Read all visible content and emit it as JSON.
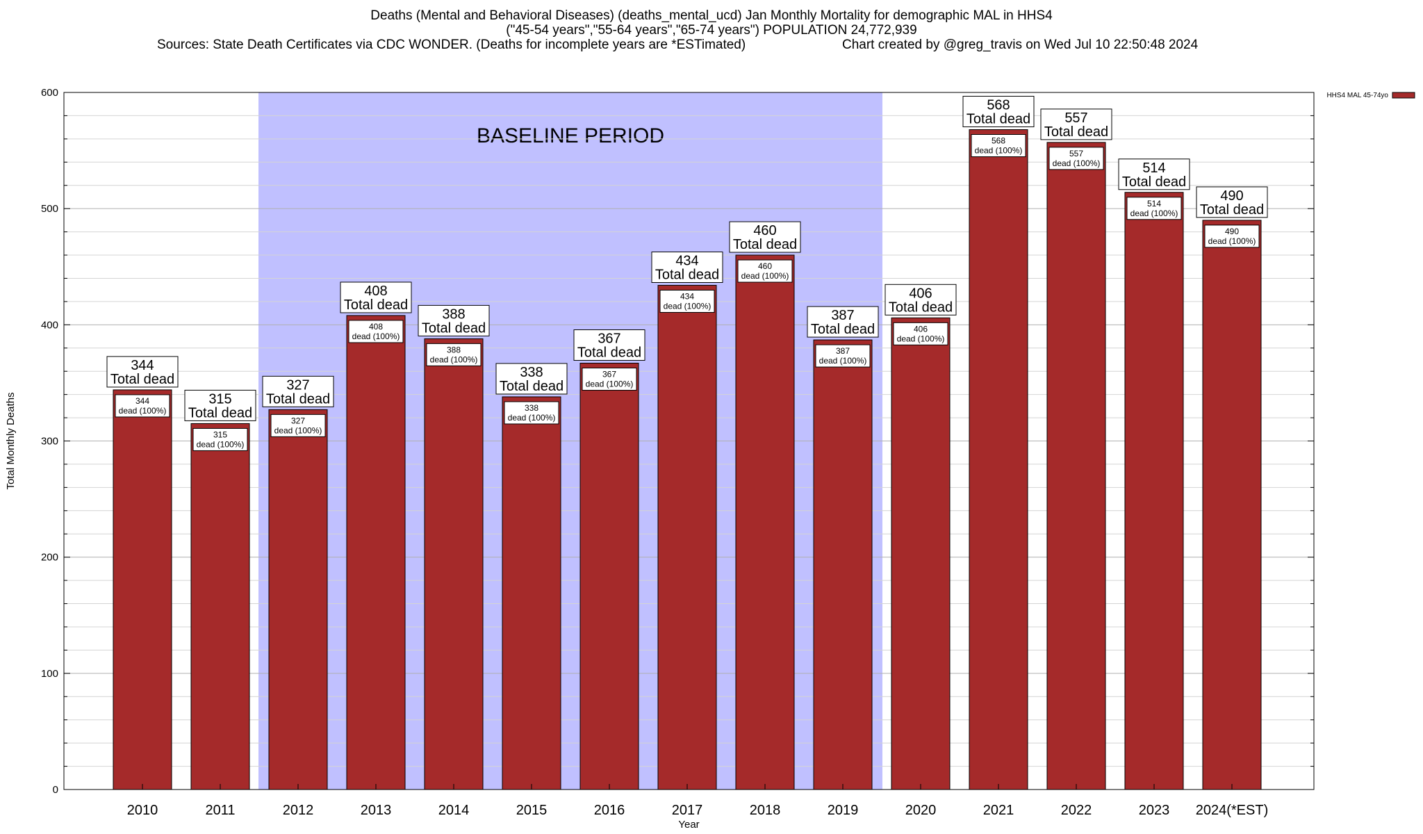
{
  "header": {
    "title_line1": "Deaths (Mental and Behavioral Diseases) (deaths_mental_ucd) Jan Monthly Mortality for demographic MAL in HHS4",
    "title_line2": "(\"45-54 years\",\"55-64 years\",\"65-74 years\") POPULATION 24,772,939",
    "sources": "Sources: State Death Certificates via CDC WONDER. (Deaths for incomplete years are *ESTimated)",
    "credit": "Chart created by @greg_travis on Wed Jul 10 22:50:48 2024"
  },
  "chart_data": {
    "type": "bar",
    "categories": [
      "2010",
      "2011",
      "2012",
      "2013",
      "2014",
      "2015",
      "2016",
      "2017",
      "2018",
      "2019",
      "2020",
      "2021",
      "2022",
      "2023",
      "2024(*EST)"
    ],
    "series": [
      {
        "name": "HHS4 MAL 45-74yo",
        "color": "#a52a2a",
        "values": [
          344,
          315,
          327,
          408,
          388,
          338,
          367,
          434,
          460,
          387,
          406,
          568,
          557,
          514,
          490
        ]
      }
    ],
    "total_label_suffix": "Total dead",
    "inner_label_suffix": "dead (100%)",
    "xlabel": "Year",
    "ylabel": "Total Monthly Deaths",
    "ylim": [
      0,
      600
    ],
    "yticks": [
      0,
      100,
      200,
      300,
      400,
      500,
      600
    ],
    "grid": true,
    "legend_position": "top-right",
    "baseline_period": {
      "label": "BASELINE PERIOD",
      "from_category": "2012",
      "to_category": "2019",
      "color": "#c0c0ff"
    }
  }
}
